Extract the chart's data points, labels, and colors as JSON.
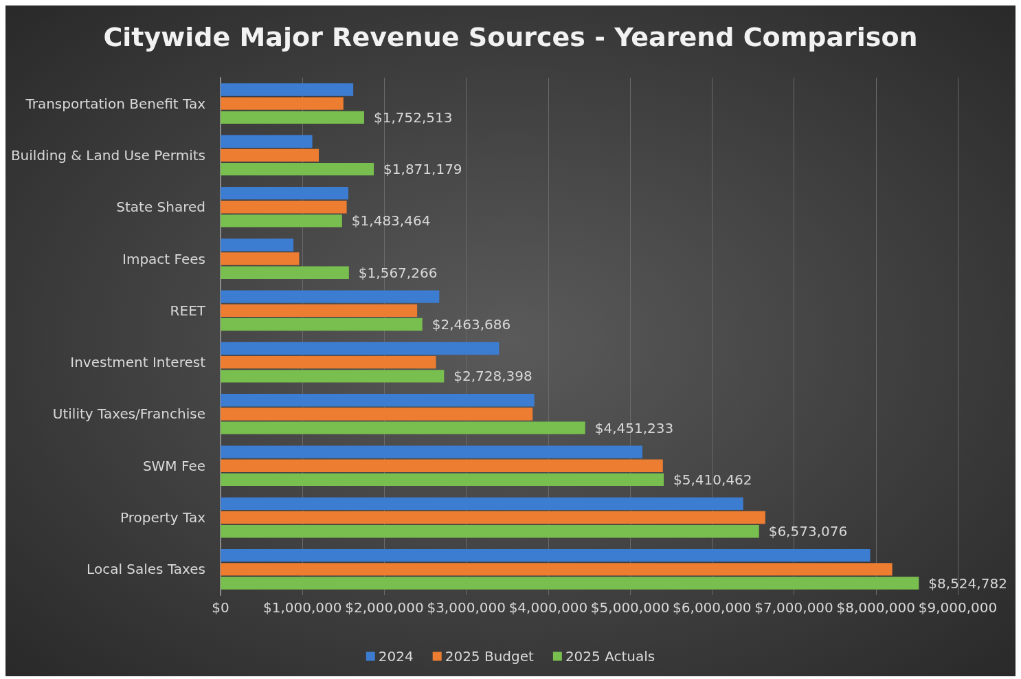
{
  "chart_data": {
    "type": "bar",
    "orientation": "horizontal",
    "title": "Citywide Major Revenue Sources - Yearend Comparison",
    "categories": [
      "Transportation Benefit Tax",
      "Building & Land Use Permits",
      "State Shared",
      "Impact Fees",
      "REET",
      "Investment Interest",
      "Utility Taxes/Franchise",
      "SWM Fee",
      "Property Tax",
      "Local Sales Taxes"
    ],
    "series": [
      {
        "name": "2024",
        "color": "#3c7dd2",
        "values": [
          1620000,
          1120000,
          1560000,
          890000,
          2670000,
          3400000,
          3830000,
          5150000,
          6380000,
          7930000
        ]
      },
      {
        "name": "2025 Budget",
        "color": "#ed7d31",
        "values": [
          1500000,
          1200000,
          1540000,
          960000,
          2400000,
          2630000,
          3810000,
          5400000,
          6650000,
          8200000
        ]
      },
      {
        "name": "2025 Actuals",
        "color": "#79bf4f",
        "values": [
          1752513,
          1871179,
          1483464,
          1567266,
          2463686,
          2728398,
          4451233,
          5410462,
          6573076,
          8524782
        ],
        "value_labels": [
          "$1,752,513",
          "$1,871,179",
          "$1,483,464",
          "$1,567,266",
          "$2,463,686",
          "$2,728,398",
          "$4,451,233",
          "$5,410,462",
          "$6,573,076",
          "$8,524,782"
        ]
      }
    ],
    "xlim": [
      0,
      9000000
    ],
    "xticks": [
      {
        "value": 0,
        "label": "$0"
      },
      {
        "value": 1000000,
        "label": "$1,000,000"
      },
      {
        "value": 2000000,
        "label": "$2,000,000"
      },
      {
        "value": 3000000,
        "label": "$3,000,000"
      },
      {
        "value": 4000000,
        "label": "$4,000,000"
      },
      {
        "value": 5000000,
        "label": "$5,000,000"
      },
      {
        "value": 6000000,
        "label": "$6,000,000"
      },
      {
        "value": 7000000,
        "label": "$7,000,000"
      },
      {
        "value": 8000000,
        "label": "$8,000,000"
      },
      {
        "value": 9000000,
        "label": "$9,000,000"
      }
    ],
    "grid": "x",
    "legend": "bottom"
  }
}
